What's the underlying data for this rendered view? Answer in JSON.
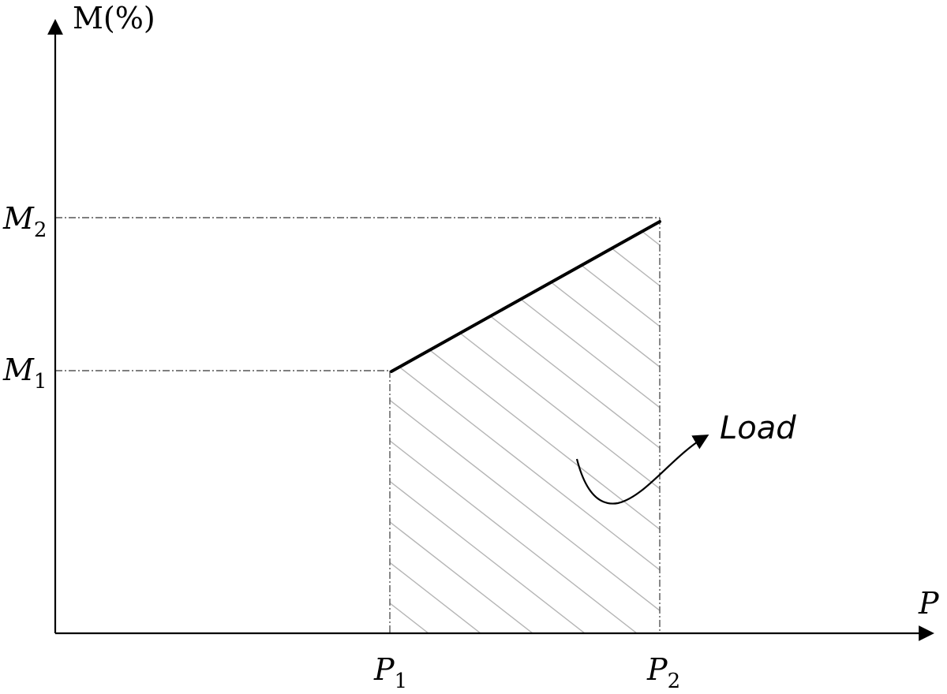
{
  "labels": {
    "y_axis": "M(%)",
    "x_axis": "P",
    "m1": {
      "main": "M",
      "sub": "1"
    },
    "m2": {
      "main": "M",
      "sub": "2"
    },
    "p1": {
      "main": "P",
      "sub": "1"
    },
    "p2": {
      "main": "P",
      "sub": "2"
    },
    "callout": "Load"
  },
  "colors": {
    "axis": "#000000",
    "guide": "#555555",
    "hatch": "#b5b5b5",
    "load_line": "#000000"
  }
}
